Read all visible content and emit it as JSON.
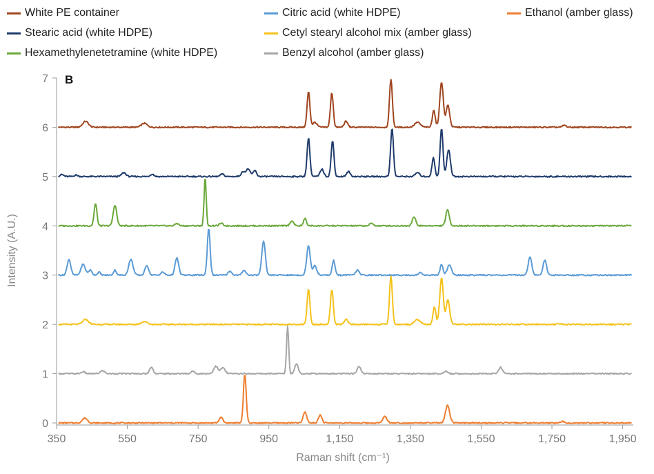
{
  "chart_data": {
    "type": "line",
    "panel_label": "B",
    "xlabel": "Raman shift (cm⁻¹)",
    "ylabel": "Intensity (A.U.)",
    "xlim": [
      350,
      1980
    ],
    "ylim": [
      0,
      7
    ],
    "x_ticks": [
      {
        "value": 350,
        "label": "350"
      },
      {
        "value": 550,
        "label": "550"
      },
      {
        "value": 750,
        "label": "750"
      },
      {
        "value": 950,
        "label": "950"
      },
      {
        "value": 1150,
        "label": "1,150"
      },
      {
        "value": 1350,
        "label": "1,350"
      },
      {
        "value": 1550,
        "label": "1,550"
      },
      {
        "value": 1750,
        "label": "1,750"
      },
      {
        "value": 1950,
        "label": "1,950"
      }
    ],
    "y_ticks": [
      0,
      1,
      2,
      3,
      4,
      5,
      6,
      7
    ],
    "grid": false,
    "legend_position": "top",
    "series": [
      {
        "name": "White PE container",
        "color": "#a0451f",
        "offset": 6,
        "peaks": [
          [
            432,
            0.12,
            8
          ],
          [
            598,
            0.08,
            8
          ],
          [
            1062,
            0.72,
            4
          ],
          [
            1080,
            0.1,
            6
          ],
          [
            1128,
            0.7,
            4
          ],
          [
            1168,
            0.12,
            5
          ],
          [
            1295,
            0.98,
            4
          ],
          [
            1370,
            0.1,
            8
          ],
          [
            1416,
            0.35,
            4
          ],
          [
            1438,
            0.92,
            5
          ],
          [
            1456,
            0.45,
            5
          ],
          [
            1785,
            0.04,
            5
          ]
        ]
      },
      {
        "name": "Stearic acid (white HDPE)",
        "color": "#1f3b6b",
        "offset": 5,
        "peaks": [
          [
            365,
            0.04,
            5
          ],
          [
            405,
            0.03,
            5
          ],
          [
            540,
            0.08,
            6
          ],
          [
            620,
            0.05,
            5
          ],
          [
            818,
            0.05,
            5
          ],
          [
            878,
            0.1,
            6
          ],
          [
            892,
            0.15,
            5
          ],
          [
            910,
            0.12,
            5
          ],
          [
            1062,
            0.78,
            4
          ],
          [
            1100,
            0.15,
            5
          ],
          [
            1130,
            0.72,
            4
          ],
          [
            1175,
            0.1,
            5
          ],
          [
            1298,
            0.98,
            4
          ],
          [
            1370,
            0.08,
            6
          ],
          [
            1415,
            0.38,
            4
          ],
          [
            1438,
            0.98,
            4
          ],
          [
            1458,
            0.55,
            5
          ]
        ]
      },
      {
        "name": "Hexamethylenetetramine (white HDPE)",
        "color": "#6aa83a",
        "offset": 4,
        "peaks": [
          [
            460,
            0.45,
            4
          ],
          [
            515,
            0.42,
            5
          ],
          [
            690,
            0.05,
            5
          ],
          [
            770,
            0.98,
            3
          ],
          [
            815,
            0.05,
            5
          ],
          [
            1015,
            0.1,
            5
          ],
          [
            1052,
            0.15,
            4
          ],
          [
            1240,
            0.05,
            5
          ],
          [
            1360,
            0.18,
            5
          ],
          [
            1455,
            0.32,
            5
          ]
        ]
      },
      {
        "name": "Citric acid (white HDPE)",
        "color": "#5b9bd5",
        "offset": 3,
        "peaks": [
          [
            385,
            0.32,
            5
          ],
          [
            425,
            0.22,
            6
          ],
          [
            445,
            0.1,
            5
          ],
          [
            470,
            0.06,
            4
          ],
          [
            515,
            0.1,
            4
          ],
          [
            560,
            0.32,
            6
          ],
          [
            605,
            0.2,
            5
          ],
          [
            650,
            0.06,
            5
          ],
          [
            690,
            0.35,
            5
          ],
          [
            780,
            0.95,
            4
          ],
          [
            840,
            0.08,
            5
          ],
          [
            880,
            0.1,
            5
          ],
          [
            935,
            0.7,
            5
          ],
          [
            1062,
            0.6,
            5
          ],
          [
            1080,
            0.2,
            5
          ],
          [
            1133,
            0.3,
            4
          ],
          [
            1200,
            0.1,
            5
          ],
          [
            1378,
            0.05,
            5
          ],
          [
            1438,
            0.22,
            4
          ],
          [
            1460,
            0.2,
            6
          ],
          [
            1688,
            0.38,
            5
          ],
          [
            1730,
            0.3,
            5
          ]
        ]
      },
      {
        "name": "Cetyl stearyl alcohol mix (amber glass)",
        "color": "#f5c21b",
        "offset": 2,
        "peaks": [
          [
            432,
            0.1,
            8
          ],
          [
            598,
            0.06,
            8
          ],
          [
            1062,
            0.72,
            4
          ],
          [
            1128,
            0.72,
            4
          ],
          [
            1168,
            0.1,
            5
          ],
          [
            1295,
            0.98,
            4
          ],
          [
            1370,
            0.1,
            8
          ],
          [
            1418,
            0.35,
            4
          ],
          [
            1438,
            0.95,
            5
          ],
          [
            1456,
            0.5,
            5
          ]
        ]
      },
      {
        "name": "Benzyl alcohol (amber glass)",
        "color": "#a6a6a6",
        "offset": 1,
        "peaks": [
          [
            425,
            0.04,
            5
          ],
          [
            480,
            0.06,
            6
          ],
          [
            618,
            0.13,
            5
          ],
          [
            735,
            0.05,
            5
          ],
          [
            800,
            0.15,
            6
          ],
          [
            820,
            0.12,
            6
          ],
          [
            1003,
            0.98,
            3
          ],
          [
            1028,
            0.2,
            5
          ],
          [
            1205,
            0.15,
            5
          ],
          [
            1450,
            0.05,
            5
          ],
          [
            1605,
            0.13,
            5
          ]
        ]
      },
      {
        "name": "Ethanol (amber glass)",
        "color": "#ed7d31",
        "offset": 0,
        "peaks": [
          [
            430,
            0.1,
            7
          ],
          [
            815,
            0.12,
            5
          ],
          [
            882,
            0.98,
            4
          ],
          [
            1052,
            0.22,
            5
          ],
          [
            1095,
            0.16,
            5
          ],
          [
            1278,
            0.13,
            6
          ],
          [
            1455,
            0.35,
            6
          ],
          [
            1780,
            0.03,
            6
          ]
        ]
      }
    ]
  },
  "legend": [
    {
      "label": "White PE container",
      "color": "#a0451f"
    },
    {
      "label": "Citric acid (white HDPE)",
      "color": "#5b9bd5"
    },
    {
      "label": "Ethanol (amber glass)",
      "color": "#ed7d31"
    },
    {
      "label": "Stearic acid (white HDPE)",
      "color": "#1f3b6b"
    },
    {
      "label": "Cetyl stearyl alcohol mix (amber glass)",
      "color": "#f5c21b"
    },
    {
      "label": "Hexamethylenetetramine (white HDPE)",
      "color": "#6aa83a"
    },
    {
      "label": "Benzyl alcohol (amber glass)",
      "color": "#a6a6a6"
    }
  ]
}
